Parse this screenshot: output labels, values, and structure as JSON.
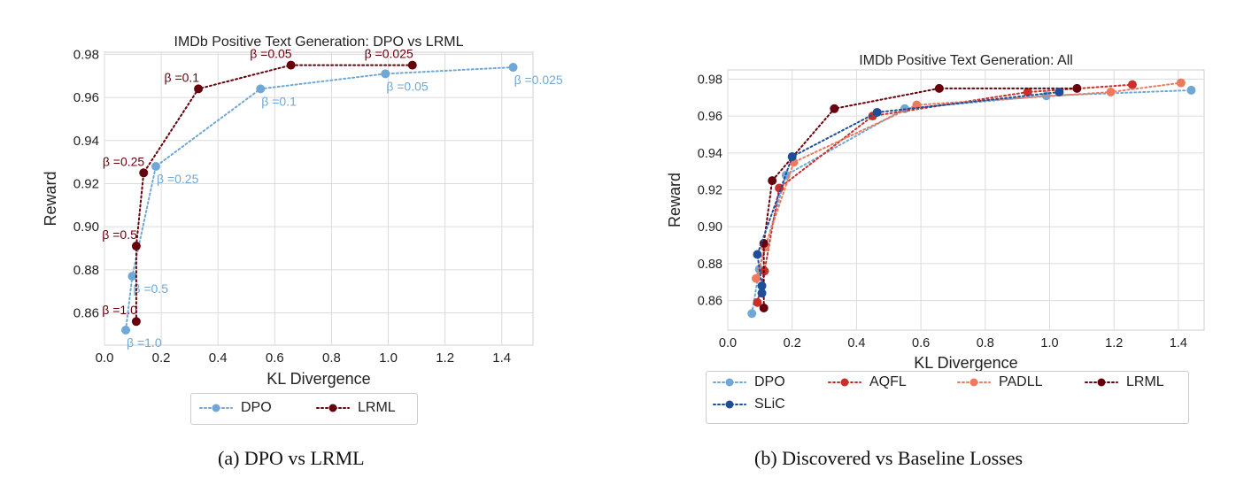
{
  "captions": {
    "a": "(a) DPO vs LRML",
    "b": "(b) Discovered vs Baseline Losses"
  },
  "chart_data": [
    {
      "type": "line",
      "title": "IMDb Positive Text Generation: DPO vs LRML",
      "xlabel": "KL Divergence",
      "ylabel": "Reward",
      "xlim": [
        0,
        1.51
      ],
      "ylim": [
        0.845,
        0.981
      ],
      "xticks": [
        "0.0",
        "0.2",
        "0.4",
        "0.6",
        "0.8",
        "1.0",
        "1.2",
        "1.4"
      ],
      "yticks": [
        "0.86",
        "0.88",
        "0.90",
        "0.92",
        "0.94",
        "0.96",
        "0.98"
      ],
      "grid": true,
      "legend": "bottom-outside",
      "series": [
        {
          "name": "DPO",
          "color": "#6fa8d6",
          "x": [
            0.075,
            0.098,
            0.181,
            0.55,
            0.99,
            1.44
          ],
          "y": [
            0.852,
            0.877,
            0.928,
            0.964,
            0.971,
            0.974
          ],
          "labels": [
            "β =1.0",
            "β =0.5",
            "β =0.25",
            "β =0.1",
            "β =0.05",
            "β =0.025"
          ]
        },
        {
          "name": "LRML",
          "color": "#67000d",
          "x": [
            0.112,
            0.112,
            0.138,
            0.331,
            0.657,
            1.085
          ],
          "y": [
            0.856,
            0.891,
            0.925,
            0.964,
            0.975,
            0.975
          ],
          "labels": [
            "β =1.0",
            "β =0.5",
            "β =0.25",
            "β =0.1",
            "β =0.05",
            "β =0.025"
          ]
        }
      ]
    },
    {
      "type": "line",
      "title": "IMDb Positive Text Generation: All",
      "xlabel": "KL Divergence",
      "ylabel": "Reward",
      "xlim": [
        0,
        1.48
      ],
      "ylim": [
        0.844,
        0.985
      ],
      "xticks": [
        "0.0",
        "0.2",
        "0.4",
        "0.6",
        "0.8",
        "1.0",
        "1.2",
        "1.4"
      ],
      "yticks": [
        "0.86",
        "0.88",
        "0.90",
        "0.92",
        "0.94",
        "0.96",
        "0.98"
      ],
      "grid": true,
      "legend": "bottom-outside",
      "series": [
        {
          "name": "DPO",
          "color": "#6fa8d6",
          "x": [
            0.075,
            0.098,
            0.181,
            0.55,
            0.99,
            1.44
          ],
          "y": [
            0.853,
            0.877,
            0.928,
            0.964,
            0.971,
            0.974
          ]
        },
        {
          "name": "AQFL",
          "color": "#cb2f2a",
          "x": [
            0.092,
            0.114,
            0.16,
            0.45,
            0.932,
            1.257
          ],
          "y": [
            0.859,
            0.876,
            0.921,
            0.96,
            0.973,
            0.977
          ]
        },
        {
          "name": "PADLL",
          "color": "#ec7a5e",
          "x": [
            0.088,
            0.116,
            0.205,
            0.587,
            1.19,
            1.408
          ],
          "y": [
            0.872,
            0.889,
            0.935,
            0.966,
            0.973,
            0.978
          ]
        },
        {
          "name": "LRML",
          "color": "#67000d",
          "x": [
            0.112,
            0.112,
            0.138,
            0.331,
            0.657,
            1.085
          ],
          "y": [
            0.856,
            0.891,
            0.925,
            0.964,
            0.975,
            0.975
          ]
        },
        {
          "name": "SLiC",
          "color": "#1f4e99",
          "x": [
            0.106,
            0.106,
            0.092,
            0.2,
            0.464,
            1.03
          ],
          "y": [
            0.864,
            0.868,
            0.885,
            0.938,
            0.962,
            0.973
          ]
        }
      ]
    }
  ]
}
